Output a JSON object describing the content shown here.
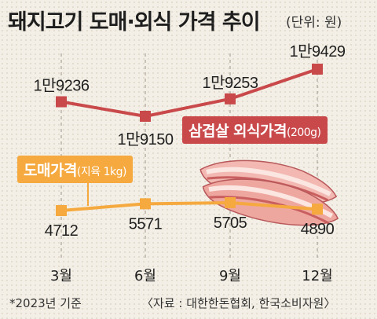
{
  "header": {
    "title": "돼지고기 도매·외식 가격 추이",
    "unit": "(단위: 원)"
  },
  "footer": {
    "note": "*2023년 기준",
    "source": "〈자료 : 대한한돈협회, 한국소비자원〉"
  },
  "chart_data": {
    "type": "line",
    "categories": [
      "3월",
      "6월",
      "9월",
      "12월"
    ],
    "series": [
      {
        "name": "삼겹살 외식가격(200g)",
        "name_main": "삼겹살 외식가격",
        "name_unit": "(200g)",
        "values": [
          19236,
          19150,
          19253,
          19429
        ],
        "labels": [
          "1만9236",
          "1만9150",
          "1만9253",
          "1만9429"
        ],
        "color": "#c9494b"
      },
      {
        "name": "도매가격(지육 1kg)",
        "name_main": "도매가격",
        "name_unit": "(지육 1kg)",
        "values": [
          4712,
          5571,
          5705,
          4890
        ],
        "labels": [
          "4712",
          "5571",
          "5705",
          "4890"
        ],
        "color": "#f5a93f"
      }
    ],
    "grid": "vertical dashed",
    "legend": "inline labels"
  }
}
